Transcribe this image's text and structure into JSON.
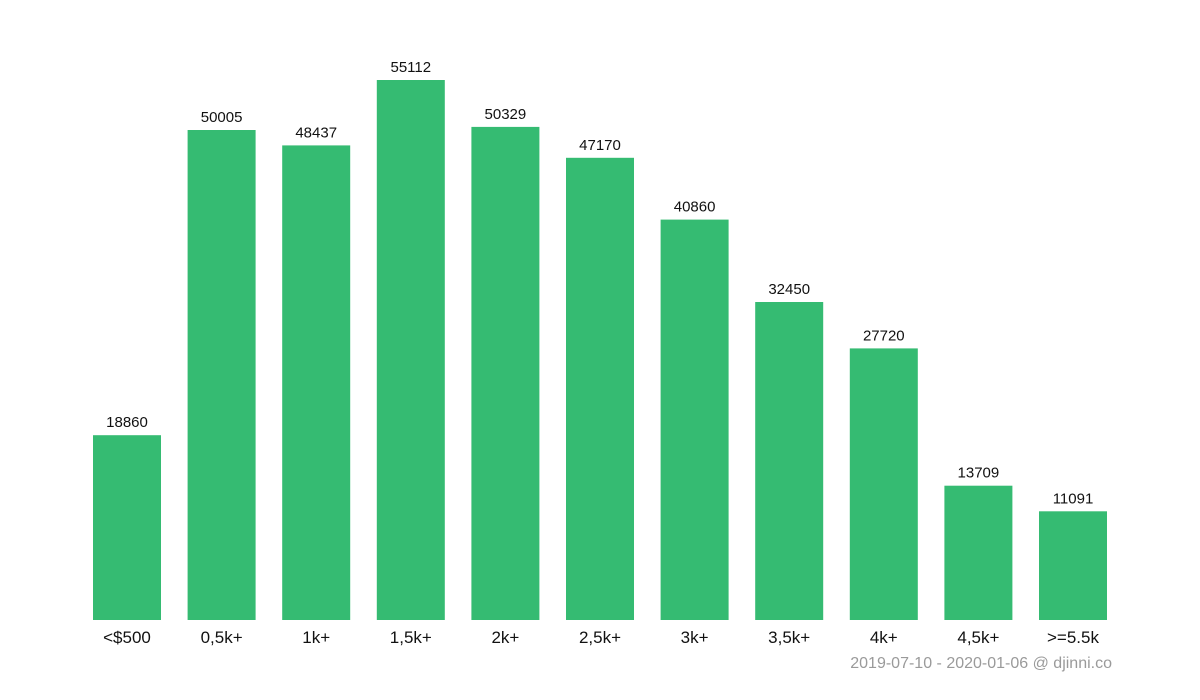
{
  "chart_data": {
    "type": "bar",
    "categories": [
      "<$500",
      "0,5k+",
      "1k+",
      "1,5k+",
      "2k+",
      "2,5k+",
      "3k+",
      "3,5k+",
      "4k+",
      "4,5k+",
      ">=5.5k"
    ],
    "values": [
      18860,
      50005,
      48437,
      55112,
      50329,
      47170,
      40860,
      32450,
      27720,
      13709,
      11091
    ],
    "title": "",
    "xlabel": "",
    "ylabel": "",
    "ylim": [
      0,
      55112
    ],
    "grid": false,
    "legend": "none",
    "bar_color": "#35bb72",
    "data_labels": true
  },
  "footer": {
    "text": "2019-07-10 - 2020-01-06 @ djinni.co",
    "color": "#9a9a9a"
  }
}
